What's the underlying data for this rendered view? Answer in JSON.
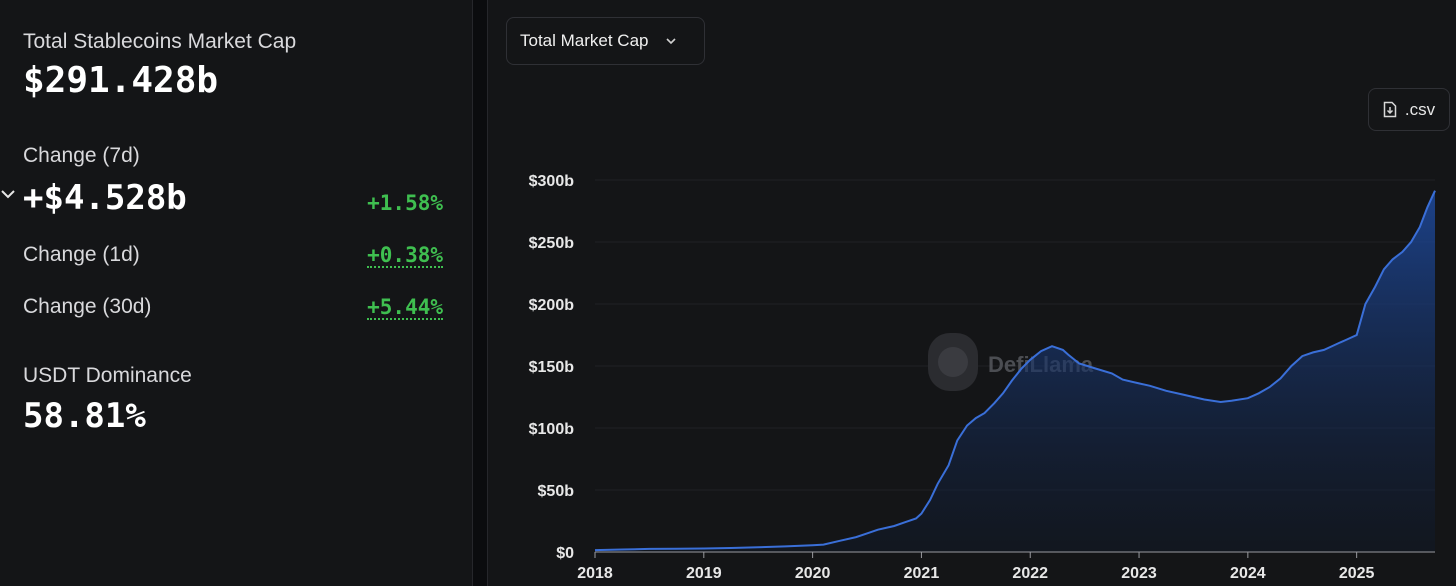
{
  "summary": {
    "market_cap_label": "Total Stablecoins Market Cap",
    "market_cap_value": "$291.428b",
    "change_7d_label": "Change (7d)",
    "change_7d_value": "+$4.528b",
    "change_7d_pct": "+1.58%",
    "change_1d_label": "Change (1d)",
    "change_1d_pct": "+0.38%",
    "change_30d_label": "Change (30d)",
    "change_30d_pct": "+5.44%",
    "dominance_label": "USDT Dominance",
    "dominance_value": "58.81%"
  },
  "controls": {
    "dropdown_label": "Total Market Cap",
    "csv_label": ".csv"
  },
  "watermark": {
    "text": "DefiLlama"
  },
  "colors": {
    "accent_line": "#3a6fd8",
    "positive": "#3fbf50",
    "area_top": "#1e4a9e"
  },
  "chart_data": {
    "type": "area",
    "title": "",
    "xlabel": "",
    "ylabel": "",
    "x_ticks": [
      2018,
      2019,
      2020,
      2021,
      2022,
      2023,
      2024,
      2025
    ],
    "y_ticks": [
      0,
      50,
      100,
      150,
      200,
      250,
      300
    ],
    "y_tick_labels": [
      "$0",
      "$50b",
      "$100b",
      "$150b",
      "$200b",
      "$250b",
      "$300b"
    ],
    "xlim": [
      2018.0,
      2025.72
    ],
    "ylim": [
      0,
      300
    ],
    "grid": true,
    "series": [
      {
        "x": [
          2018.0,
          2018.25,
          2018.5,
          2018.75,
          2019.0,
          2019.25,
          2019.5,
          2019.75,
          2020.0,
          2020.1,
          2020.25,
          2020.4,
          2020.5,
          2020.6,
          2020.75,
          2020.85,
          2020.95,
          2021.0,
          2021.08,
          2021.15,
          2021.25,
          2021.33,
          2021.42,
          2021.5,
          2021.58,
          2021.67,
          2021.75,
          2021.83,
          2021.92,
          2022.0,
          2022.1,
          2022.2,
          2022.3,
          2022.35,
          2022.45,
          2022.6,
          2022.75,
          2022.85,
          2023.0,
          2023.1,
          2023.25,
          2023.4,
          2023.5,
          2023.6,
          2023.75,
          2023.85,
          2024.0,
          2024.1,
          2024.2,
          2024.3,
          2024.4,
          2024.5,
          2024.6,
          2024.7,
          2024.8,
          2024.85,
          2024.9,
          2025.0,
          2025.08,
          2025.17,
          2025.25,
          2025.33,
          2025.42,
          2025.5,
          2025.58,
          2025.65,
          2025.72
        ],
        "y": [
          1.5,
          2,
          2.5,
          2.7,
          2.8,
          3.2,
          3.8,
          4.5,
          5.5,
          6,
          9,
          12,
          15,
          18,
          21,
          24,
          27,
          31,
          42,
          55,
          70,
          90,
          102,
          108,
          112,
          120,
          128,
          138,
          148,
          155,
          162,
          166,
          163,
          159,
          152,
          148,
          144,
          139,
          136,
          134,
          130,
          127,
          125,
          123,
          121,
          122,
          124,
          128,
          133,
          140,
          150,
          158,
          161,
          163,
          167,
          169,
          171,
          175,
          200,
          214,
          228,
          236,
          242,
          250,
          262,
          278,
          291.4
        ]
      }
    ]
  }
}
